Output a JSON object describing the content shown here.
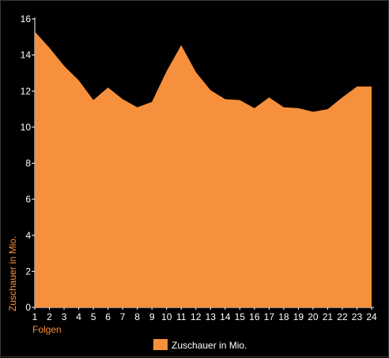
{
  "chart_data": {
    "type": "area",
    "xlabel": "Folgen",
    "ylabel": "Zuschauer in Mio.",
    "x": [
      1,
      2,
      3,
      4,
      5,
      6,
      7,
      8,
      9,
      10,
      11,
      12,
      13,
      14,
      15,
      16,
      17,
      18,
      19,
      20,
      21,
      22,
      23,
      24
    ],
    "xticks": [
      "1",
      "2",
      "3",
      "4",
      "5",
      "6",
      "7",
      "8",
      "9",
      "10",
      "11",
      "12",
      "13",
      "14",
      "15",
      "16",
      "17",
      "18",
      "19",
      "20",
      "21",
      "22",
      "23",
      "24"
    ],
    "ylim": [
      0,
      16
    ],
    "yticks": [
      "0",
      "2",
      "4",
      "6",
      "8",
      "10",
      "12",
      "14",
      "16"
    ],
    "grid": false,
    "legend_position": "bottom",
    "series": [
      {
        "name": "Zuschauer in Mio.",
        "values": [
          15.3,
          14.4,
          13.4,
          12.6,
          11.5,
          12.2,
          11.55,
          11.1,
          11.4,
          13.1,
          14.55,
          13.05,
          12.05,
          11.55,
          11.5,
          11.05,
          11.65,
          11.1,
          11.05,
          10.85,
          11.0,
          11.65,
          12.25,
          12.25
        ],
        "color": "#f7903c"
      }
    ]
  }
}
